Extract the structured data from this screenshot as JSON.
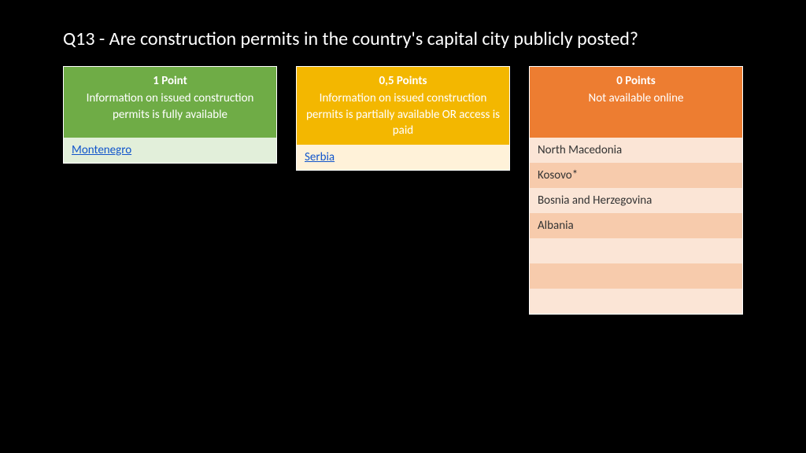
{
  "title": "Q13 - Are construction permits in the country's capital city publicly posted?",
  "columns": [
    {
      "points": "1 Point",
      "desc": "Information on issued construction permits is fully available",
      "header_color": "#6fac46",
      "row_odd_color": "#e2efda",
      "row_even_color": "#c5e0b3",
      "rows": [
        {
          "label": "Montenegro",
          "link": true
        }
      ],
      "total_rows": 1
    },
    {
      "points": "0,5 Points",
      "desc": "Information on issued construction permits is partially available OR access is paid",
      "header_color": "#f3b700",
      "row_odd_color": "#fff2d9",
      "row_even_color": "#ffe6b3",
      "rows": [
        {
          "label": "Serbia",
          "link": true
        }
      ],
      "total_rows": 1
    },
    {
      "points": "0 Points",
      "desc": "Not available online",
      "header_color": "#ed7d31",
      "row_odd_color": "#fbe5d6",
      "row_even_color": "#f7cbac",
      "rows": [
        {
          "label": "North Macedonia",
          "link": false
        },
        {
          "label": "Kosovo*",
          "link": false
        },
        {
          "label": "Bosnia and Herzegovina",
          "link": false
        },
        {
          "label": "Albania",
          "link": false
        },
        {
          "label": "",
          "link": false
        },
        {
          "label": "",
          "link": false
        },
        {
          "label": "",
          "link": false
        }
      ],
      "total_rows": 7
    }
  ]
}
